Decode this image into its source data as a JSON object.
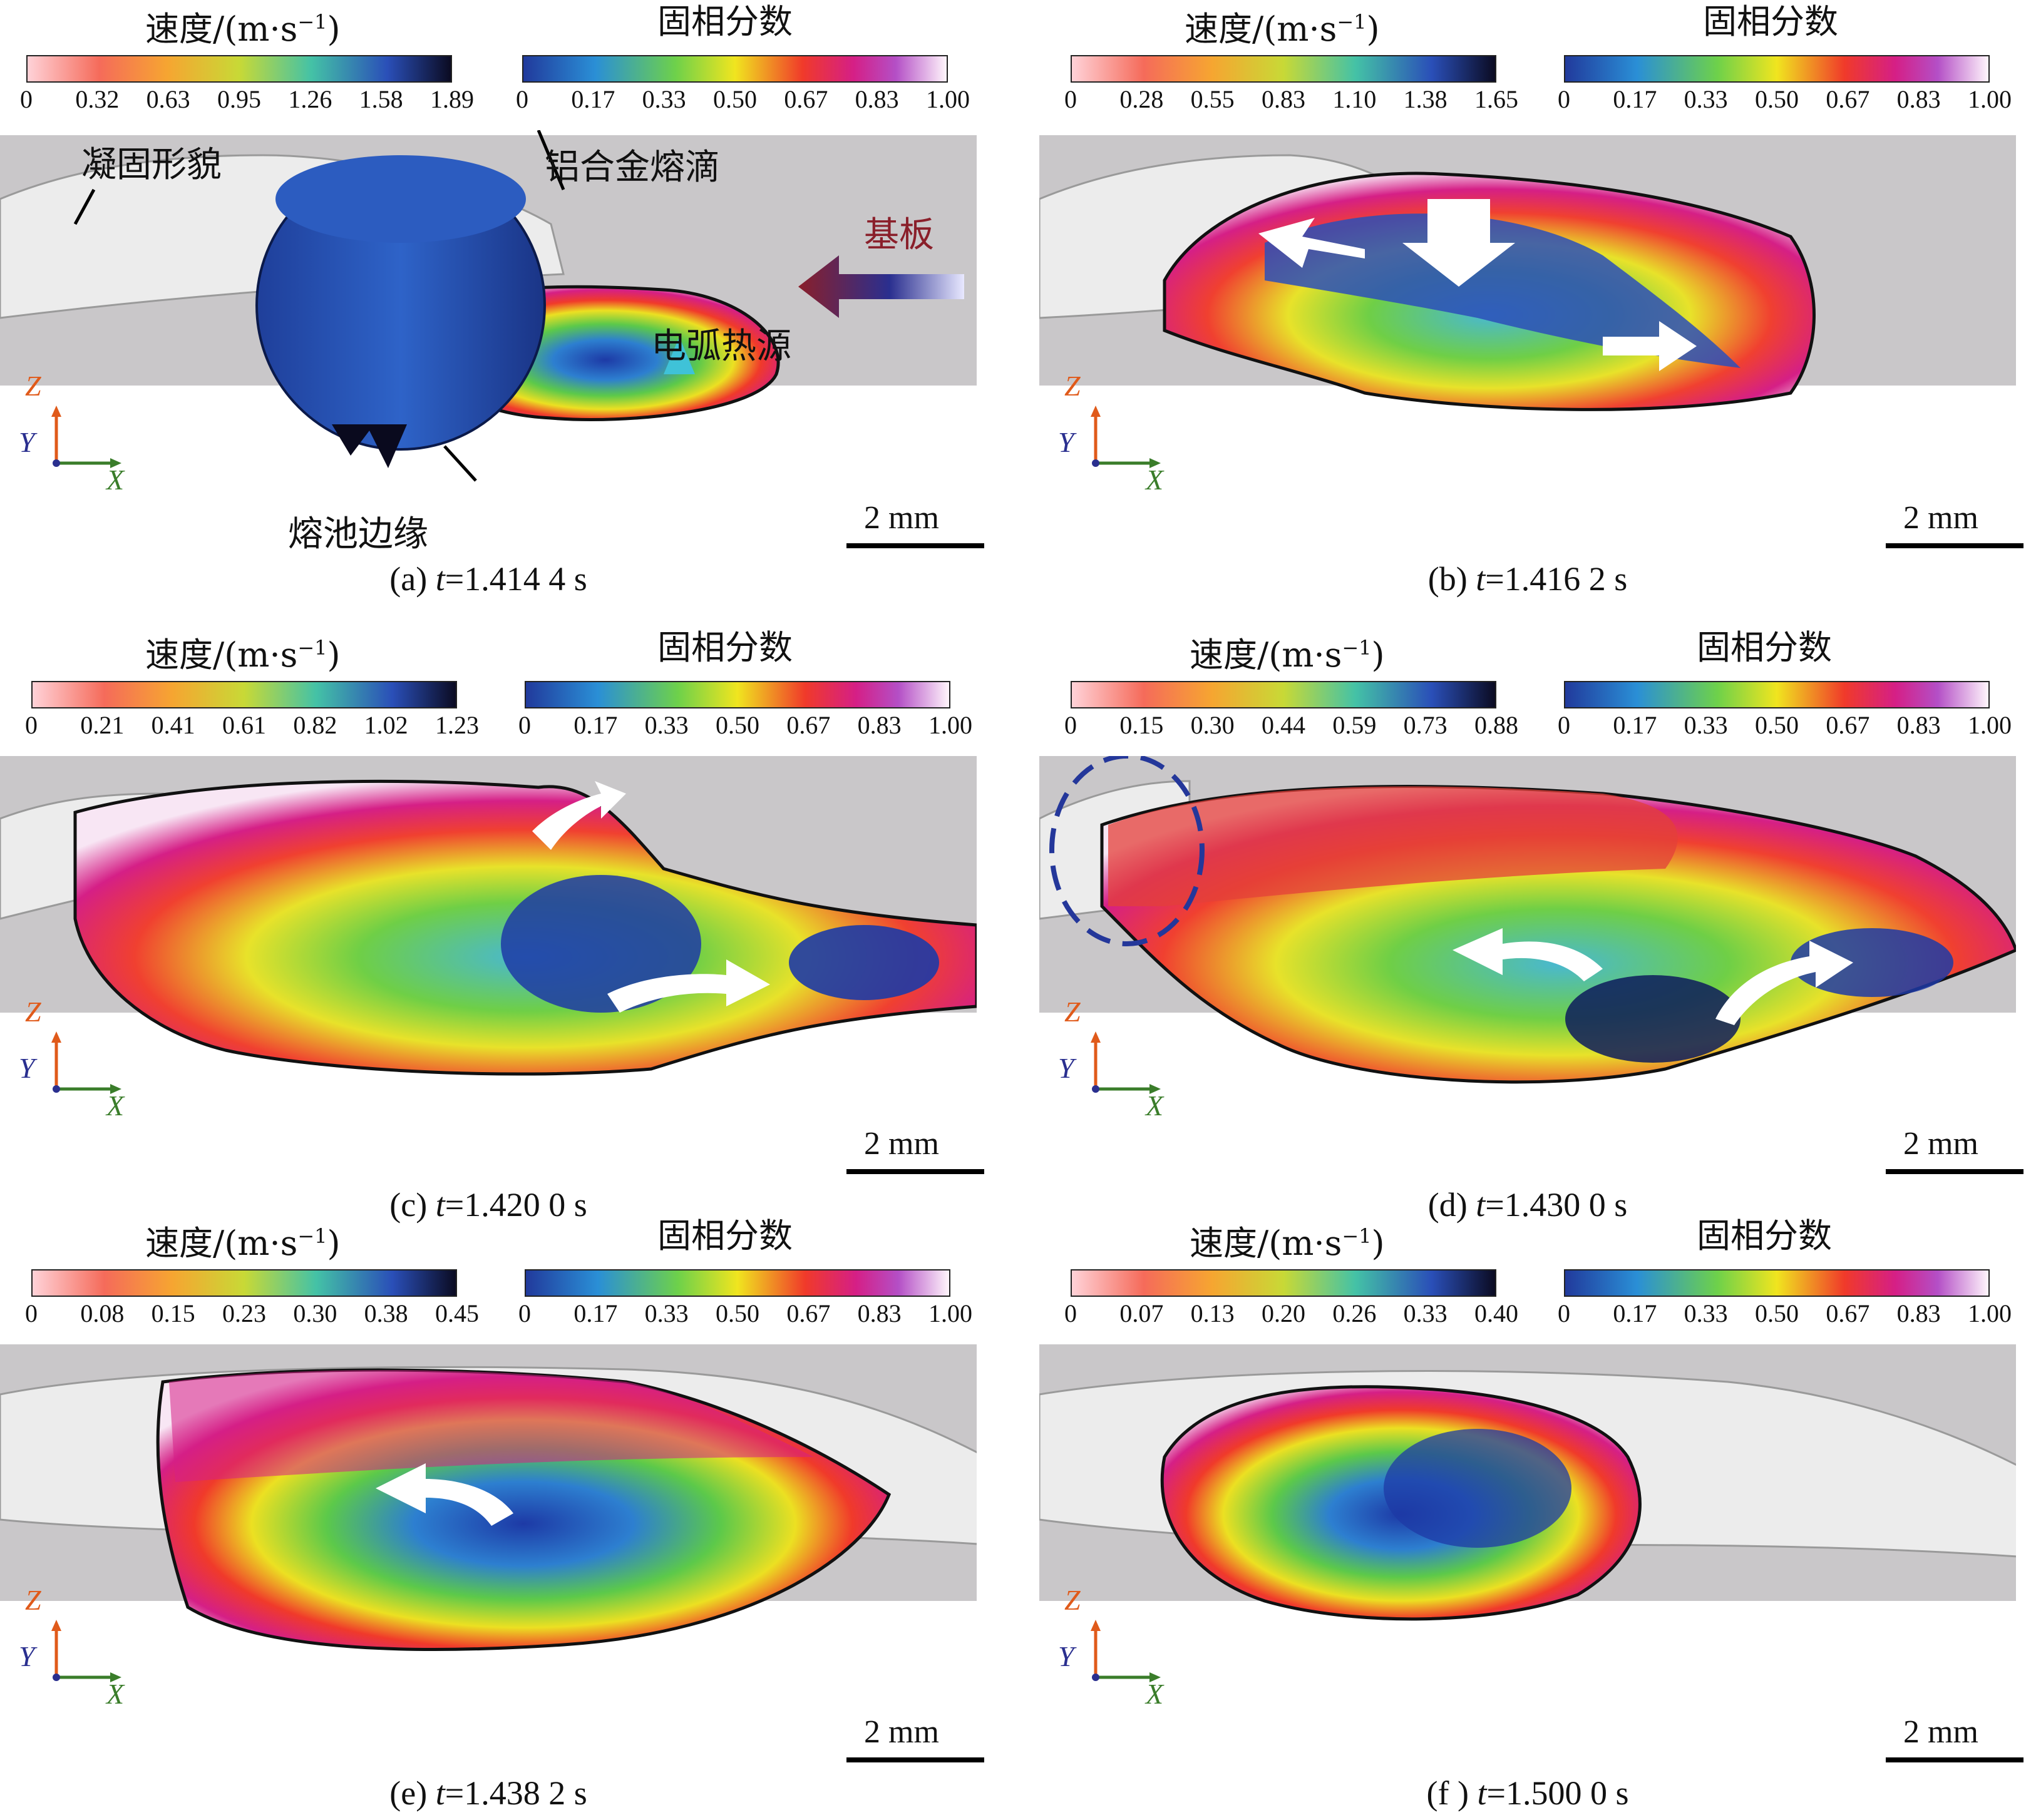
{
  "colorbars": {
    "speed_title_main": "速度/(m·s",
    "speed_title_exp": "−1",
    "speed_title_close": ")",
    "solid_title": "固相分数",
    "solid_ticks": [
      "0",
      "0.17",
      "0.33",
      "0.50",
      "0.67",
      "0.83",
      "1.00"
    ]
  },
  "axes": {
    "z": "Z",
    "y": "Y",
    "x": "X"
  },
  "scale_label": "2 mm",
  "annotations": {
    "a_solidified": "凝固形貌",
    "a_droplet": "铝合金熔滴",
    "a_substrate": "基板",
    "a_arc": "电弧热源",
    "a_pool_edge": "熔池边缘"
  },
  "panels": [
    {
      "id": "a",
      "caption_prefix": "(a) ",
      "caption_t": "t",
      "caption_value": "=1.414 4 s",
      "speed_ticks": [
        "0",
        "0.32",
        "0.63",
        "0.95",
        "1.26",
        "1.58",
        "1.89"
      ]
    },
    {
      "id": "b",
      "caption_prefix": "(b) ",
      "caption_t": "t",
      "caption_value": "=1.416 2 s",
      "speed_ticks": [
        "0",
        "0.28",
        "0.55",
        "0.83",
        "1.10",
        "1.38",
        "1.65"
      ]
    },
    {
      "id": "c",
      "caption_prefix": "(c) ",
      "caption_t": "t",
      "caption_value": "=1.420 0 s",
      "speed_ticks": [
        "0",
        "0.21",
        "0.41",
        "0.61",
        "0.82",
        "1.02",
        "1.23"
      ]
    },
    {
      "id": "d",
      "caption_prefix": "(d) ",
      "caption_t": "t",
      "caption_value": "=1.430 0 s",
      "speed_ticks": [
        "0",
        "0.15",
        "0.30",
        "0.44",
        "0.59",
        "0.73",
        "0.88"
      ]
    },
    {
      "id": "e",
      "caption_prefix": "(e) ",
      "caption_t": "t",
      "caption_value": "=1.438 2 s",
      "speed_ticks": [
        "0",
        "0.08",
        "0.15",
        "0.23",
        "0.30",
        "0.38",
        "0.45"
      ]
    },
    {
      "id": "f",
      "caption_prefix": "(f ) ",
      "caption_t": "t",
      "caption_value": "=1.500 0 s",
      "speed_ticks": [
        "0",
        "0.07",
        "0.13",
        "0.20",
        "0.26",
        "0.33",
        "0.40"
      ]
    }
  ],
  "colors": {
    "substrate": "#c9c7c9",
    "bead": "#ececec",
    "speed_gradient": [
      "#ffd2d8",
      "#f56b5a",
      "#f6a531",
      "#c8d936",
      "#44c2a6",
      "#2a4fb8",
      "#0b0b22"
    ],
    "solid_gradient": [
      "#213a9c",
      "#2a8fd6",
      "#6ed14a",
      "#f0e51f",
      "#f03a2a",
      "#d51f86",
      "#b44fc6",
      "#fff5fb"
    ]
  }
}
